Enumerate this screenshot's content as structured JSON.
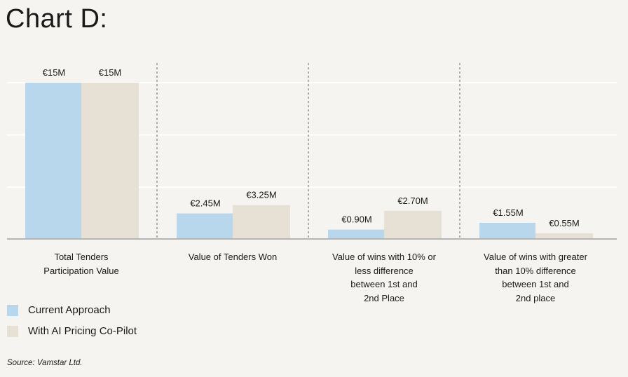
{
  "title": "Chart D:",
  "source": "Source: Vamstar Ltd.",
  "chart_data": {
    "type": "bar",
    "title": "Chart D:",
    "categories": [
      "Total Tenders\nParticipation Value",
      "Value of Tenders Won",
      "Value of wins with 10% or\nless difference\nbetween 1st and\n2nd Place",
      "Value of wins with greater\nthan 10% difference\nbetween 1st and\n2nd place"
    ],
    "series": [
      {
        "name": "Current Approach",
        "color": "#b8d7ec",
        "values": [
          15,
          2.45,
          0.9,
          1.55
        ],
        "labels": [
          "€15M",
          "€2.45M",
          "€0.90M",
          "€1.55M"
        ]
      },
      {
        "name": "With AI Pricing Co-Pilot",
        "color": "#e7e0d4",
        "values": [
          15,
          3.25,
          2.7,
          0.55
        ],
        "labels": [
          "€15M",
          "€3.25M",
          "€2.70M",
          "€0.55M"
        ]
      }
    ],
    "xlabel": "",
    "ylabel": "",
    "ylim": [
      0,
      15
    ],
    "grid": true,
    "legend": "bottom-left"
  }
}
